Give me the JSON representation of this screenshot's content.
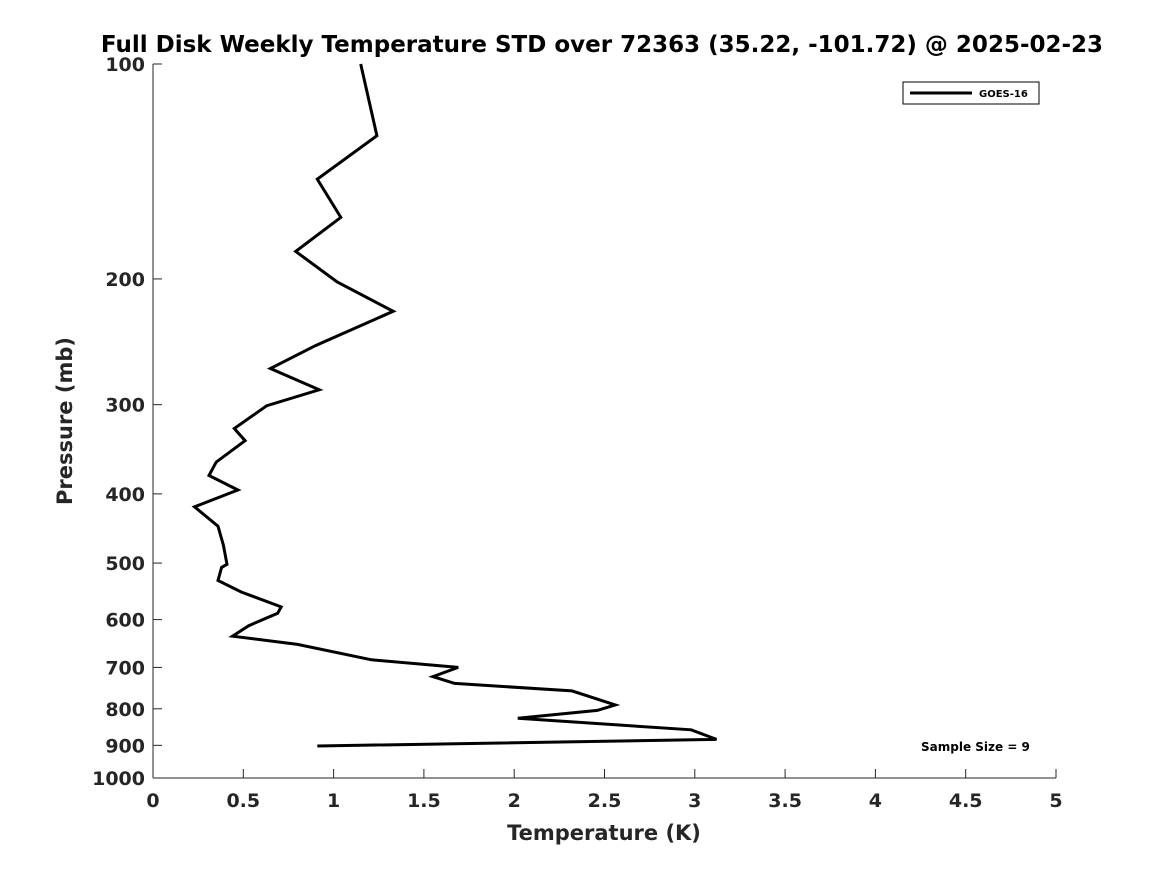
{
  "chart_data": {
    "type": "line",
    "title": "Full Disk Weekly Temperature STD over 72363 (35.22, -101.72) @ 2025-02-23",
    "xlabel": "Temperature (K)",
    "ylabel": "Pressure (mb)",
    "xlim": [
      0,
      5
    ],
    "ylim": [
      100,
      1000
    ],
    "yscale": "log",
    "yreversed": true,
    "xticks": [
      "0",
      "0.5",
      "1",
      "1.5",
      "2",
      "2.5",
      "3",
      "3.5",
      "4",
      "4.5",
      "5"
    ],
    "yticks": [
      "100",
      "200",
      "300",
      "400",
      "500",
      "600",
      "700",
      "800",
      "900",
      "1000"
    ],
    "grid": false,
    "legend_position": "top-right",
    "annotation": "Sample Size = 9",
    "series": [
      {
        "name": "GOES-16",
        "color": "#000000",
        "points": [
          {
            "t": 1.15,
            "p": 100
          },
          {
            "t": 1.24,
            "p": 126
          },
          {
            "t": 0.91,
            "p": 145
          },
          {
            "t": 1.04,
            "p": 164
          },
          {
            "t": 0.79,
            "p": 183
          },
          {
            "t": 1.02,
            "p": 202
          },
          {
            "t": 1.33,
            "p": 222
          },
          {
            "t": 0.9,
            "p": 248
          },
          {
            "t": 0.65,
            "p": 267
          },
          {
            "t": 0.92,
            "p": 286
          },
          {
            "t": 0.63,
            "p": 301
          },
          {
            "t": 0.45,
            "p": 324
          },
          {
            "t": 0.51,
            "p": 337
          },
          {
            "t": 0.35,
            "p": 361
          },
          {
            "t": 0.31,
            "p": 377
          },
          {
            "t": 0.47,
            "p": 395
          },
          {
            "t": 0.23,
            "p": 417
          },
          {
            "t": 0.36,
            "p": 444
          },
          {
            "t": 0.39,
            "p": 472
          },
          {
            "t": 0.41,
            "p": 502
          },
          {
            "t": 0.38,
            "p": 507
          },
          {
            "t": 0.36,
            "p": 529
          },
          {
            "t": 0.49,
            "p": 549
          },
          {
            "t": 0.71,
            "p": 576
          },
          {
            "t": 0.69,
            "p": 588
          },
          {
            "t": 0.53,
            "p": 612
          },
          {
            "t": 0.44,
            "p": 633
          },
          {
            "t": 0.8,
            "p": 650
          },
          {
            "t": 1.21,
            "p": 683
          },
          {
            "t": 1.69,
            "p": 700
          },
          {
            "t": 1.55,
            "p": 721
          },
          {
            "t": 1.67,
            "p": 737
          },
          {
            "t": 2.32,
            "p": 755
          },
          {
            "t": 2.56,
            "p": 790
          },
          {
            "t": 2.46,
            "p": 804
          },
          {
            "t": 2.02,
            "p": 825
          },
          {
            "t": 2.98,
            "p": 856
          },
          {
            "t": 3.12,
            "p": 883
          },
          {
            "t": 0.91,
            "p": 902
          }
        ]
      }
    ]
  }
}
